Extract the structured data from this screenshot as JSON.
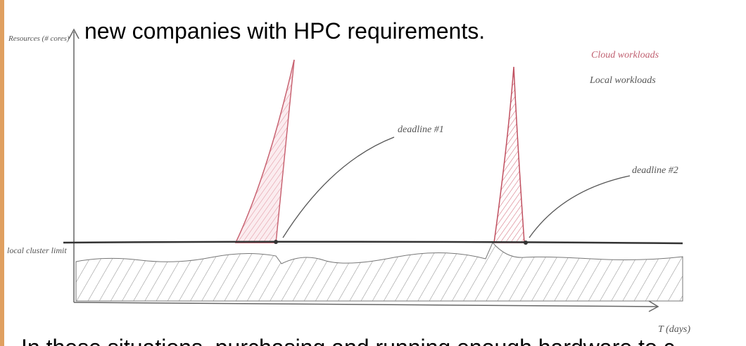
{
  "slide": {
    "heading": "new companies with HPC requirements.",
    "body": "In these situations, purchasing and running enough hardware to c"
  },
  "sketch": {
    "y_axis_label": "Resources (# cores)",
    "x_axis_label": "T (days)",
    "limit_label": "local cluster limit",
    "legend": [
      "Cloud workloads",
      "Local workloads"
    ],
    "annotations": [
      "deadline #1",
      "deadline #2"
    ]
  }
}
